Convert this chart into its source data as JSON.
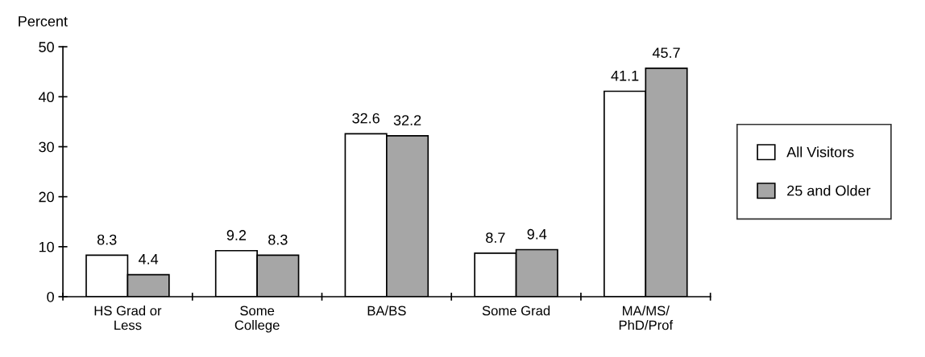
{
  "chart_data": {
    "type": "bar",
    "ylabel": "Percent",
    "categories": [
      "HS Grad or\nLess",
      "Some\nCollege",
      "BA/BS",
      "Some Grad",
      "MA/MS/\nPhD/Prof"
    ],
    "series": [
      {
        "name": "All Visitors",
        "color": "#ffffff",
        "values": [
          8.3,
          9.2,
          32.6,
          8.7,
          41.1
        ]
      },
      {
        "name": "25 and Older",
        "color": "#a6a6a6",
        "values": [
          4.4,
          8.3,
          32.2,
          9.4,
          45.7
        ]
      }
    ],
    "ylim": [
      0,
      50
    ],
    "yticks": [
      0,
      10,
      20,
      30,
      40,
      50
    ],
    "grid": false,
    "legend": "right",
    "data_labels": true
  }
}
